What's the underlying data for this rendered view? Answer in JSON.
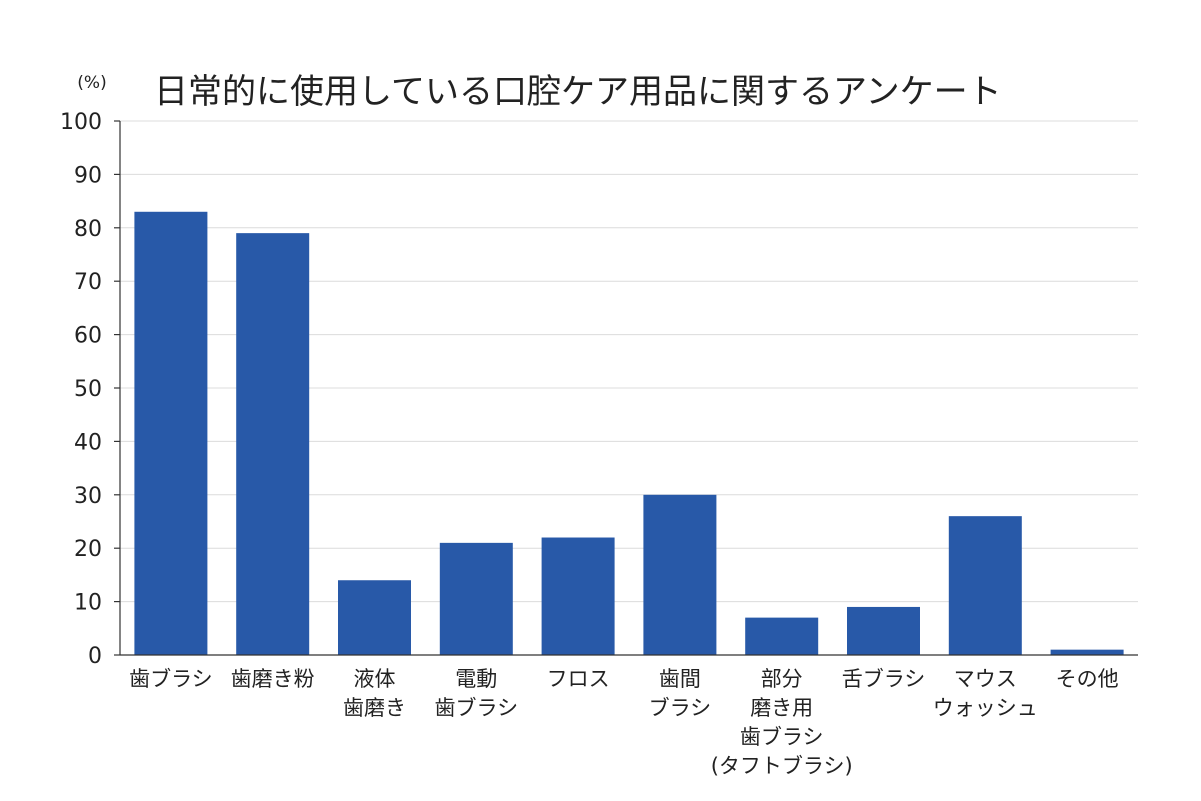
{
  "chart_data": {
    "type": "bar",
    "title": "日常的に使用している口腔ケア用品に関するアンケート",
    "unit_label": "(%)",
    "xlabel": "",
    "ylabel": "",
    "ylim": [
      0,
      100
    ],
    "yticks": [
      0,
      10,
      20,
      30,
      40,
      50,
      60,
      70,
      80,
      90,
      100
    ],
    "grid": true,
    "categories": [
      "歯ブラシ",
      "歯磨き粉",
      "液体\n歯磨き",
      "電動\n歯ブラシ",
      "フロス",
      "歯間\nブラシ",
      "部分\n磨き用\n歯ブラシ\n(タフトブラシ)",
      "舌ブラシ",
      "マウス\nウォッシュ",
      "その他"
    ],
    "values": [
      83,
      79,
      14,
      21,
      22,
      30,
      7,
      9,
      26,
      1
    ],
    "bar_color": "#2859a8"
  }
}
